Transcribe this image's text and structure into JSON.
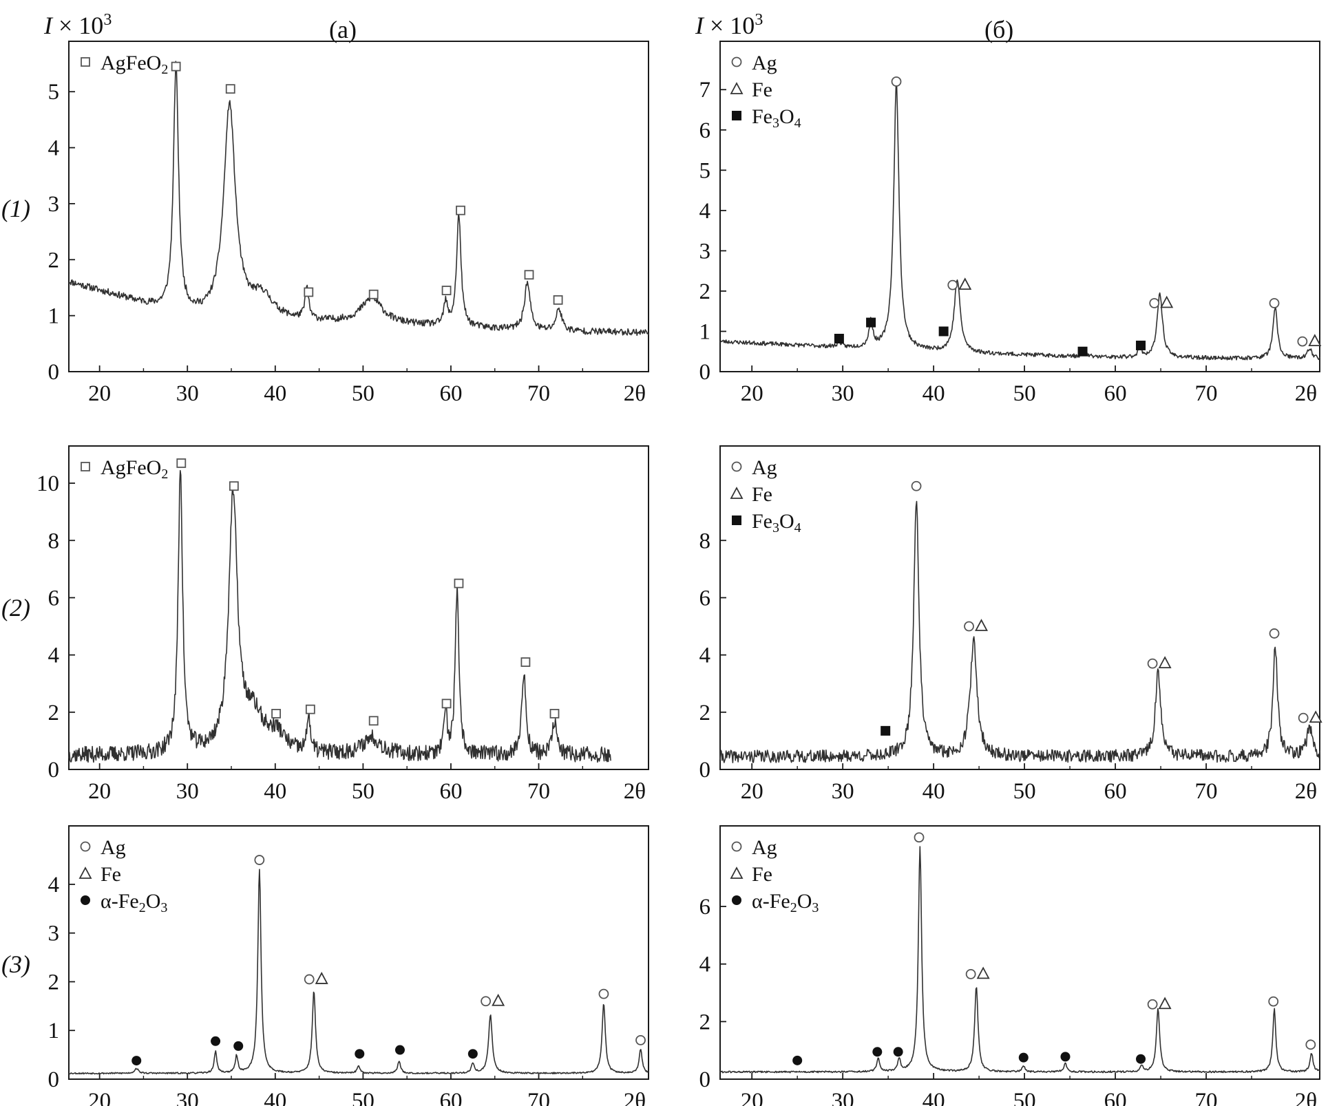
{
  "figure": {
    "yunit_left": "I × 10",
    "yunit_right": "I × 10",
    "yunit_exp": "3",
    "col_labels": [
      "(a)",
      "(б)"
    ],
    "row_labels": [
      "(1)",
      "(2)",
      "(3)"
    ]
  },
  "colors": {
    "trace": "#303030",
    "axis": "#1a1a1a",
    "marker": "#555555",
    "filled": "#111111"
  },
  "chart_data": [
    {
      "id": "a1",
      "type": "line",
      "panel": "(1) (a)",
      "xlabel": "2θ",
      "ylabel": "I × 10³",
      "xlim": [
        16.5,
        82.5
      ],
      "ylim": [
        0,
        5.9
      ],
      "xticks": [
        20,
        30,
        40,
        50,
        60,
        70
      ],
      "yticks": [
        0,
        1,
        2,
        3,
        4,
        5
      ],
      "ytick_labels": [
        "0",
        "1",
        "2",
        "3",
        "4",
        "5"
      ],
      "noise": 0.06,
      "seed": 11,
      "baseline": [
        [
          16.5,
          1.6
        ],
        [
          22,
          1.35
        ],
        [
          28,
          1.05
        ],
        [
          32,
          0.95
        ],
        [
          40,
          0.9
        ],
        [
          50,
          0.85
        ],
        [
          60,
          0.8
        ],
        [
          70,
          0.72
        ],
        [
          82.5,
          0.7
        ]
      ],
      "peaks": [
        [
          28.7,
          4.4,
          0.35
        ],
        [
          34.8,
          3.8,
          0.8
        ],
        [
          38.5,
          0.4,
          1.5
        ],
        [
          43.6,
          0.55,
          0.25
        ],
        [
          51,
          0.45,
          1.5
        ],
        [
          59.4,
          0.4,
          0.25
        ],
        [
          60.9,
          2.0,
          0.3
        ],
        [
          68.7,
          0.85,
          0.4
        ],
        [
          72.3,
          0.4,
          0.4
        ]
      ],
      "markers": [
        {
          "x": 28.7,
          "y": 5.45,
          "symbols": [
            "square"
          ]
        },
        {
          "x": 34.9,
          "y": 5.05,
          "symbols": [
            "square"
          ]
        },
        {
          "x": 43.8,
          "y": 1.42,
          "symbols": [
            "square"
          ]
        },
        {
          "x": 51.2,
          "y": 1.38,
          "symbols": [
            "square"
          ]
        },
        {
          "x": 59.5,
          "y": 1.45,
          "symbols": [
            "square"
          ]
        },
        {
          "x": 61.1,
          "y": 2.88,
          "symbols": [
            "square"
          ]
        },
        {
          "x": 68.9,
          "y": 1.73,
          "symbols": [
            "square"
          ]
        },
        {
          "x": 72.2,
          "y": 1.28,
          "symbols": [
            "square"
          ]
        }
      ],
      "legend": [
        {
          "symbol": "square",
          "label": "AgFeO",
          "sub": "2"
        }
      ]
    },
    {
      "id": "b1",
      "type": "line",
      "panel": "(1) (б)",
      "xlabel": "2θ",
      "ylabel": "I × 10³",
      "xlim": [
        16.5,
        82.5
      ],
      "ylim": [
        0,
        8.2
      ],
      "xticks": [
        20,
        30,
        40,
        50,
        60,
        70
      ],
      "yticks": [
        0,
        1,
        2,
        3,
        4,
        5,
        6,
        7
      ],
      "ytick_labels": [
        "0",
        "1",
        "2",
        "3",
        "4",
        "5",
        "6",
        "7"
      ],
      "noise": 0.05,
      "seed": 23,
      "baseline": [
        [
          16.5,
          0.75
        ],
        [
          30,
          0.6
        ],
        [
          45,
          0.45
        ],
        [
          60,
          0.35
        ],
        [
          82.5,
          0.32
        ]
      ],
      "peaks": [
        [
          29.6,
          0.15,
          0.2
        ],
        [
          33.1,
          0.65,
          0.25
        ],
        [
          35.9,
          6.6,
          0.35
        ],
        [
          42.6,
          1.8,
          0.4
        ],
        [
          56.6,
          0.1,
          0.3
        ],
        [
          62.7,
          0.2,
          0.3
        ],
        [
          64.9,
          1.6,
          0.35
        ],
        [
          77.6,
          1.25,
          0.3
        ],
        [
          81.4,
          0.25,
          0.3
        ]
      ],
      "markers": [
        {
          "x": 29.6,
          "y": 0.82,
          "symbols": [
            "filled-square"
          ]
        },
        {
          "x": 33.1,
          "y": 1.22,
          "symbols": [
            "filled-square"
          ]
        },
        {
          "x": 35.9,
          "y": 7.2,
          "symbols": [
            "circle"
          ]
        },
        {
          "x": 41.1,
          "y": 1.0,
          "symbols": [
            "filled-square"
          ]
        },
        {
          "x": 42.7,
          "y": 2.15,
          "symbols": [
            "circle",
            "triangle"
          ]
        },
        {
          "x": 56.4,
          "y": 0.5,
          "symbols": [
            "filled-square"
          ]
        },
        {
          "x": 62.8,
          "y": 0.65,
          "symbols": [
            "filled-square"
          ]
        },
        {
          "x": 64.9,
          "y": 1.7,
          "symbols": [
            "circle",
            "triangle"
          ]
        },
        {
          "x": 77.5,
          "y": 1.7,
          "symbols": [
            "circle"
          ]
        },
        {
          "x": 81.2,
          "y": 0.75,
          "symbols": [
            "circle",
            "triangle"
          ]
        }
      ],
      "legend": [
        {
          "symbol": "circle",
          "label": "Ag"
        },
        {
          "symbol": "triangle",
          "label": "Fe"
        },
        {
          "symbol": "filled-square",
          "label": "Fe",
          "sub": "3",
          "label2": "O",
          "sub2": "4"
        }
      ]
    },
    {
      "id": "a2",
      "type": "line",
      "panel": "(2) (a)",
      "xlabel": "2θ",
      "ylabel": "I × 10³",
      "xlim": [
        16.5,
        82.5
      ],
      "ylim": [
        0,
        11.3
      ],
      "xmax_data": 78.2,
      "xticks": [
        20,
        30,
        40,
        50,
        60,
        70
      ],
      "yticks": [
        0,
        2,
        4,
        6,
        8,
        10
      ],
      "ytick_labels": [
        "0",
        "2",
        "4",
        "6",
        "8",
        "10"
      ],
      "noise": 0.28,
      "seed": 37,
      "baseline": [
        [
          16.5,
          0.5
        ],
        [
          78.2,
          0.5
        ]
      ],
      "peaks": [
        [
          29.2,
          10.0,
          0.3
        ],
        [
          35.2,
          8.8,
          0.6
        ],
        [
          37.5,
          1.3,
          1.5
        ],
        [
          40.2,
          0.6,
          1.0
        ],
        [
          43.8,
          1.4,
          0.2
        ],
        [
          51,
          0.6,
          1.2
        ],
        [
          59.4,
          1.5,
          0.2
        ],
        [
          60.7,
          5.7,
          0.25
        ],
        [
          68.3,
          2.8,
          0.3
        ],
        [
          71.8,
          1.2,
          0.3
        ]
      ],
      "markers": [
        {
          "x": 29.3,
          "y": 10.7,
          "symbols": [
            "square"
          ]
        },
        {
          "x": 35.3,
          "y": 9.9,
          "symbols": [
            "square"
          ]
        },
        {
          "x": 40.1,
          "y": 1.95,
          "symbols": [
            "square"
          ]
        },
        {
          "x": 44.0,
          "y": 2.1,
          "symbols": [
            "square"
          ]
        },
        {
          "x": 51.2,
          "y": 1.7,
          "symbols": [
            "square"
          ]
        },
        {
          "x": 59.5,
          "y": 2.3,
          "symbols": [
            "square"
          ]
        },
        {
          "x": 60.9,
          "y": 6.5,
          "symbols": [
            "square"
          ]
        },
        {
          "x": 68.5,
          "y": 3.75,
          "symbols": [
            "square"
          ]
        },
        {
          "x": 71.8,
          "y": 1.95,
          "symbols": [
            "square"
          ]
        }
      ],
      "legend": [
        {
          "symbol": "square",
          "label": "AgFeO",
          "sub": "2"
        }
      ]
    },
    {
      "id": "b2",
      "type": "line",
      "panel": "(2) (б)",
      "xlabel": "2θ",
      "ylabel": "I × 10³",
      "xlim": [
        16.5,
        82.5
      ],
      "ylim": [
        0,
        11.3
      ],
      "xticks": [
        20,
        30,
        40,
        50,
        60,
        70
      ],
      "yticks": [
        0,
        2,
        4,
        6,
        8
      ],
      "ytick_labels": [
        "0",
        "2",
        "4",
        "6",
        "8"
      ],
      "noise": 0.22,
      "seed": 41,
      "baseline": [
        [
          16.5,
          0.45
        ],
        [
          82.5,
          0.45
        ]
      ],
      "peaks": [
        [
          38.1,
          9.0,
          0.35
        ],
        [
          44.4,
          4.0,
          0.45
        ],
        [
          64.7,
          3.0,
          0.35
        ],
        [
          77.6,
          3.9,
          0.3
        ],
        [
          81.4,
          1.0,
          0.4
        ]
      ],
      "markers": [
        {
          "x": 34.7,
          "y": 1.35,
          "symbols": [
            "filled-square"
          ]
        },
        {
          "x": 38.1,
          "y": 9.9,
          "symbols": [
            "circle"
          ]
        },
        {
          "x": 44.5,
          "y": 5.0,
          "symbols": [
            "circle",
            "triangle"
          ]
        },
        {
          "x": 64.7,
          "y": 3.7,
          "symbols": [
            "circle",
            "triangle"
          ]
        },
        {
          "x": 77.5,
          "y": 4.75,
          "symbols": [
            "circle"
          ]
        },
        {
          "x": 81.3,
          "y": 1.8,
          "symbols": [
            "circle",
            "triangle"
          ]
        }
      ],
      "legend": [
        {
          "symbol": "circle",
          "label": "Ag"
        },
        {
          "symbol": "triangle",
          "label": "Fe"
        },
        {
          "symbol": "filled-square",
          "label": "Fe",
          "sub": "3",
          "label2": "O",
          "sub2": "4"
        }
      ]
    },
    {
      "id": "a3",
      "type": "line",
      "panel": "(3) (a)",
      "xlabel": "2θ",
      "ylabel": "I × 10³",
      "xlim": [
        16.5,
        82.5
      ],
      "ylim": [
        0,
        5.2
      ],
      "xticks": [
        20,
        30,
        40,
        50,
        60,
        70
      ],
      "yticks": [
        0,
        1,
        2,
        3,
        4
      ],
      "ytick_labels": [
        "0",
        "1",
        "2",
        "3",
        "4"
      ],
      "noise": 0.015,
      "seed": 53,
      "baseline": [
        [
          16.5,
          0.12
        ],
        [
          82.5,
          0.12
        ]
      ],
      "peaks": [
        [
          24.2,
          0.1,
          0.25
        ],
        [
          33.2,
          0.45,
          0.18
        ],
        [
          35.6,
          0.35,
          0.18
        ],
        [
          38.2,
          4.2,
          0.22
        ],
        [
          44.4,
          1.7,
          0.22
        ],
        [
          49.5,
          0.15,
          0.2
        ],
        [
          54.1,
          0.25,
          0.2
        ],
        [
          62.5,
          0.2,
          0.2
        ],
        [
          64.5,
          1.2,
          0.25
        ],
        [
          77.4,
          1.45,
          0.22
        ],
        [
          81.6,
          0.5,
          0.2
        ]
      ],
      "markers": [
        {
          "x": 24.2,
          "y": 0.38,
          "symbols": [
            "dot"
          ]
        },
        {
          "x": 33.2,
          "y": 0.78,
          "symbols": [
            "dot"
          ]
        },
        {
          "x": 35.8,
          "y": 0.68,
          "symbols": [
            "dot"
          ]
        },
        {
          "x": 38.2,
          "y": 4.5,
          "symbols": [
            "circle"
          ]
        },
        {
          "x": 44.5,
          "y": 2.05,
          "symbols": [
            "circle",
            "triangle"
          ]
        },
        {
          "x": 49.6,
          "y": 0.52,
          "symbols": [
            "dot"
          ]
        },
        {
          "x": 54.2,
          "y": 0.6,
          "symbols": [
            "dot"
          ]
        },
        {
          "x": 62.5,
          "y": 0.52,
          "symbols": [
            "dot"
          ]
        },
        {
          "x": 64.6,
          "y": 1.6,
          "symbols": [
            "circle",
            "triangle"
          ]
        },
        {
          "x": 77.4,
          "y": 1.75,
          "symbols": [
            "circle"
          ]
        },
        {
          "x": 81.6,
          "y": 0.8,
          "symbols": [
            "circle"
          ]
        }
      ],
      "legend": [
        {
          "symbol": "circle",
          "label": "Ag"
        },
        {
          "symbol": "triangle",
          "label": "Fe"
        },
        {
          "symbol": "dot",
          "label": "α-Fe",
          "sub": "2",
          "label2": "O",
          "sub2": "3"
        }
      ]
    },
    {
      "id": "b3",
      "type": "line",
      "panel": "(3) (б)",
      "xlabel": "2θ",
      "ylabel": "I × 10³",
      "xlim": [
        16.5,
        82.5
      ],
      "ylim": [
        0,
        8.8
      ],
      "xticks": [
        20,
        30,
        40,
        50,
        60,
        70
      ],
      "yticks": [
        0,
        2,
        4,
        6
      ],
      "ytick_labels": [
        "0",
        "2",
        "4",
        "6"
      ],
      "noise": 0.03,
      "seed": 61,
      "baseline": [
        [
          16.5,
          0.25
        ],
        [
          82.5,
          0.25
        ]
      ],
      "peaks": [
        [
          33.9,
          0.5,
          0.18
        ],
        [
          36.2,
          0.45,
          0.18
        ],
        [
          38.5,
          7.8,
          0.22
        ],
        [
          44.7,
          3.0,
          0.22
        ],
        [
          49.9,
          0.2,
          0.2
        ],
        [
          54.5,
          0.3,
          0.2
        ],
        [
          62.9,
          0.2,
          0.2
        ],
        [
          64.7,
          2.2,
          0.22
        ],
        [
          77.5,
          2.2,
          0.2
        ],
        [
          81.6,
          0.65,
          0.2
        ]
      ],
      "markers": [
        {
          "x": 25.0,
          "y": 0.65,
          "symbols": [
            "dot"
          ]
        },
        {
          "x": 33.8,
          "y": 0.95,
          "symbols": [
            "dot"
          ]
        },
        {
          "x": 36.1,
          "y": 0.95,
          "symbols": [
            "dot"
          ]
        },
        {
          "x": 38.4,
          "y": 8.4,
          "symbols": [
            "circle"
          ]
        },
        {
          "x": 44.7,
          "y": 3.65,
          "symbols": [
            "circle",
            "triangle"
          ]
        },
        {
          "x": 49.9,
          "y": 0.75,
          "symbols": [
            "dot"
          ]
        },
        {
          "x": 54.5,
          "y": 0.78,
          "symbols": [
            "dot"
          ]
        },
        {
          "x": 62.8,
          "y": 0.7,
          "symbols": [
            "dot"
          ]
        },
        {
          "x": 64.7,
          "y": 2.6,
          "symbols": [
            "circle",
            "triangle"
          ]
        },
        {
          "x": 77.4,
          "y": 2.7,
          "symbols": [
            "circle"
          ]
        },
        {
          "x": 81.5,
          "y": 1.2,
          "symbols": [
            "circle"
          ]
        }
      ],
      "legend": [
        {
          "symbol": "circle",
          "label": "Ag"
        },
        {
          "symbol": "triangle",
          "label": "Fe"
        },
        {
          "symbol": "dot",
          "label": "α-Fe",
          "sub": "2",
          "label2": "O",
          "sub2": "3"
        }
      ]
    }
  ]
}
